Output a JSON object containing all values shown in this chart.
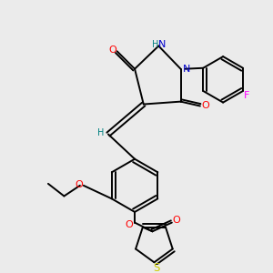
{
  "bg_color": "#ebebeb",
  "atom_colors": {
    "O": "#ff0000",
    "N": "#0000cd",
    "H": "#008080",
    "S": "#cccc00",
    "F": "#ff00ff",
    "C": "#000000"
  },
  "lw": 1.4,
  "fs": 7.5
}
